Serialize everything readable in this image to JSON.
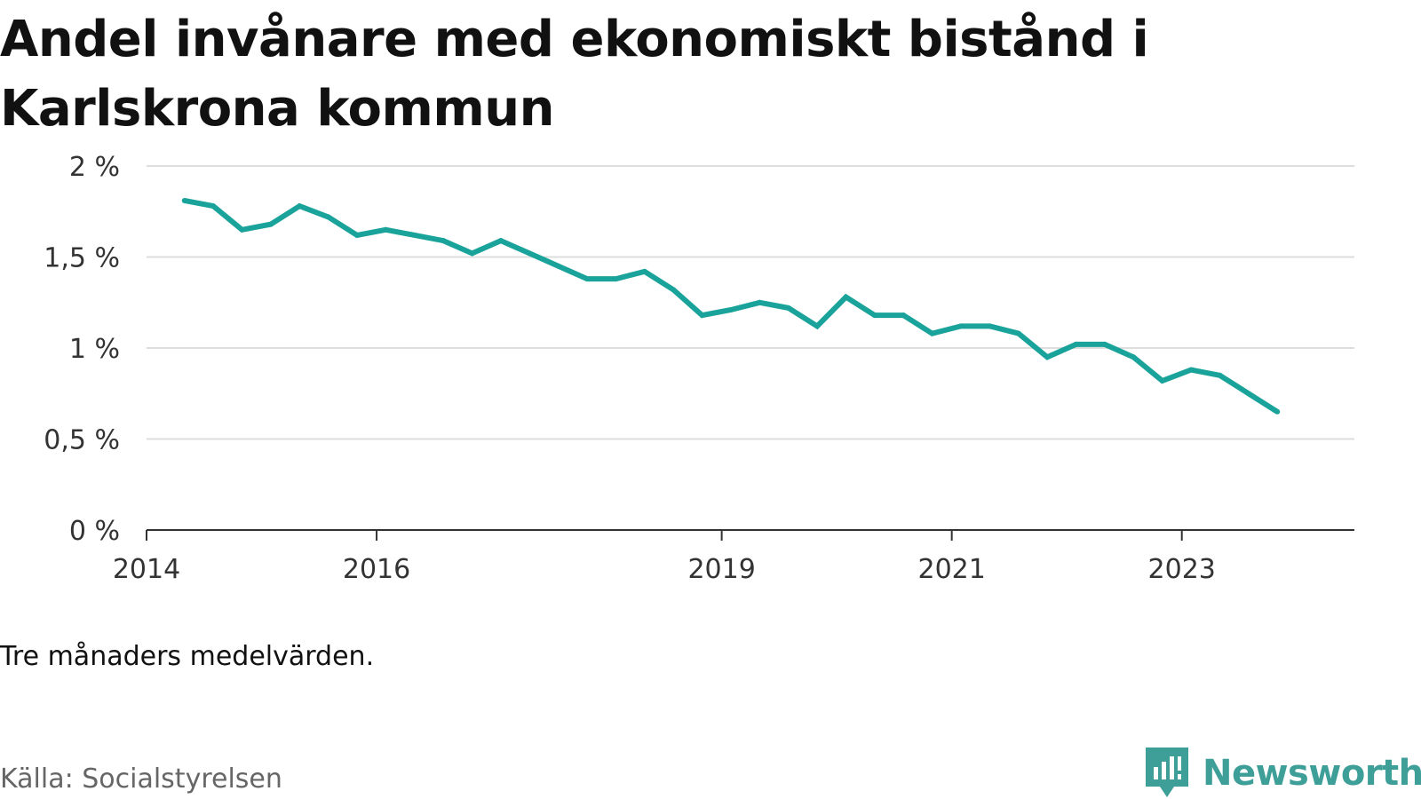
{
  "title": "Andel invånare med ekonomiskt bistånd i Karlskrona kommun",
  "note": "Tre månaders medelvärden.",
  "source": "Källa: Socialstyrelsen",
  "brand": {
    "name": "Newsworthy",
    "icon": "newsworthy-logo-icon",
    "color": "#3e9e98"
  },
  "colors": {
    "line": "#1aa39a",
    "grid": "#dddddd",
    "axis": "#333333"
  },
  "chart_data": {
    "type": "line",
    "title": "Andel invånare med ekonomiskt bistånd i Karlskrona kommun",
    "xlabel": "",
    "ylabel": "",
    "ylim": [
      0,
      2
    ],
    "yticks": [
      0,
      0.5,
      1,
      1.5,
      2
    ],
    "ytick_labels": [
      "0 %",
      "0,5 %",
      "1 %",
      "1,5 %",
      "2 %"
    ],
    "xlim": [
      2014.0,
      2024.5
    ],
    "xticks": [
      2014,
      2016,
      2019,
      2021,
      2023
    ],
    "xtick_labels": [
      "2014",
      "2016",
      "2019",
      "2021",
      "2023"
    ],
    "grid": true,
    "series": [
      {
        "x": [
          2014.33,
          2014.58,
          2014.83,
          2015.08,
          2015.33,
          2015.58,
          2015.83,
          2016.08,
          2016.33,
          2016.58,
          2016.83,
          2017.08,
          2017.33,
          2017.58,
          2017.83,
          2018.08,
          2018.33,
          2018.58,
          2018.83,
          2019.08,
          2019.33,
          2019.58,
          2019.83,
          2020.08,
          2020.33,
          2020.58,
          2020.83,
          2021.08,
          2021.33,
          2021.58,
          2021.83,
          2022.08,
          2022.33,
          2022.58,
          2022.83,
          2023.08,
          2023.33,
          2023.58,
          2023.83
        ],
        "values": [
          1.81,
          1.78,
          1.65,
          1.68,
          1.78,
          1.72,
          1.62,
          1.65,
          1.62,
          1.59,
          1.52,
          1.59,
          1.52,
          1.45,
          1.38,
          1.38,
          1.42,
          1.32,
          1.18,
          1.21,
          1.25,
          1.22,
          1.12,
          1.28,
          1.18,
          1.18,
          1.08,
          1.12,
          1.12,
          1.08,
          0.95,
          1.02,
          1.02,
          0.95,
          0.82,
          0.88,
          0.85,
          0.75,
          0.65
        ]
      }
    ]
  }
}
